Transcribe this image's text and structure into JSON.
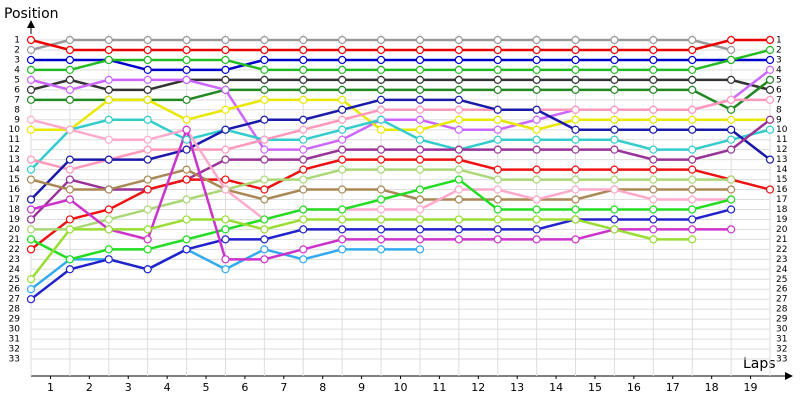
{
  "chart_data": {
    "type": "line",
    "ylabel": "Position",
    "xlabel": "Laps",
    "x": [
      0,
      1,
      2,
      3,
      4,
      5,
      6,
      7,
      8,
      9,
      10,
      11,
      12,
      13,
      14,
      15,
      16,
      17,
      18,
      19
    ],
    "xlim": [
      0,
      19
    ],
    "xticks": [
      {
        "value": 0.5,
        "label": "1"
      },
      {
        "value": 1.5,
        "label": "2"
      },
      {
        "value": 2.5,
        "label": "3"
      },
      {
        "value": 3.5,
        "label": "4"
      },
      {
        "value": 4.5,
        "label": "5"
      },
      {
        "value": 5.5,
        "label": "6"
      },
      {
        "value": 6.5,
        "label": "7"
      },
      {
        "value": 7.5,
        "label": "8"
      },
      {
        "value": 8.5,
        "label": "9"
      },
      {
        "value": 9.5,
        "label": "10"
      },
      {
        "value": 10.5,
        "label": "11"
      },
      {
        "value": 11.5,
        "label": "12"
      },
      {
        "value": 12.5,
        "label": "13"
      },
      {
        "value": 13.5,
        "label": "14"
      },
      {
        "value": 14.5,
        "label": "15"
      },
      {
        "value": 15.5,
        "label": "16"
      },
      {
        "value": 16.5,
        "label": "17"
      },
      {
        "value": 17.5,
        "label": "18"
      },
      {
        "value": 18.5,
        "label": "19"
      }
    ],
    "ylim": [
      1,
      33
    ],
    "y_reversed": true,
    "yticks": [
      1,
      2,
      3,
      4,
      5,
      6,
      7,
      8,
      9,
      10,
      11,
      12,
      13,
      14,
      15,
      16,
      17,
      18,
      19,
      20,
      21,
      22,
      23,
      24,
      25,
      26,
      27,
      28,
      29,
      30,
      31,
      32,
      33
    ],
    "grid": true,
    "series": [
      {
        "color": "#999999",
        "values": [
          2,
          1,
          1,
          1,
          1,
          1,
          1,
          1,
          1,
          1,
          1,
          1,
          1,
          1,
          1,
          1,
          1,
          1,
          2,
          null
        ]
      },
      {
        "color": "#ee0000",
        "values": [
          1,
          2,
          2,
          2,
          2,
          2,
          2,
          2,
          2,
          2,
          2,
          2,
          2,
          2,
          2,
          2,
          2,
          2,
          1,
          1
        ]
      },
      {
        "color": "#0000cc",
        "values": [
          3,
          3,
          3,
          4,
          4,
          4,
          3,
          3,
          3,
          3,
          3,
          3,
          3,
          3,
          3,
          3,
          3,
          3,
          3,
          3
        ]
      },
      {
        "color": "#22bb22",
        "values": [
          4,
          4,
          3,
          3,
          3,
          3,
          4,
          4,
          4,
          4,
          4,
          4,
          4,
          4,
          4,
          4,
          4,
          4,
          3,
          2
        ]
      },
      {
        "color": "#333333",
        "values": [
          6,
          5,
          6,
          6,
          5,
          5,
          5,
          5,
          5,
          5,
          5,
          5,
          5,
          5,
          5,
          5,
          5,
          5,
          5,
          6
        ]
      },
      {
        "color": "#228822",
        "values": [
          7,
          7,
          7,
          7,
          7,
          6,
          6,
          6,
          6,
          6,
          6,
          6,
          6,
          6,
          6,
          6,
          6,
          6,
          8,
          5
        ]
      },
      {
        "color": "#cc66ff",
        "values": [
          5,
          6,
          5,
          5,
          5,
          6,
          12,
          12,
          11,
          9,
          9,
          10,
          10,
          9,
          8,
          8,
          8,
          8,
          7,
          4
        ]
      },
      {
        "color": "#e8e800",
        "values": [
          10,
          10,
          7,
          7,
          9,
          8,
          7,
          7,
          7,
          10,
          10,
          9,
          9,
          10,
          9,
          9,
          9,
          9,
          9,
          9
        ]
      },
      {
        "color": "#33cccc",
        "values": [
          14,
          10,
          9,
          9,
          11,
          10,
          11,
          11,
          10,
          9,
          11,
          12,
          11,
          11,
          11,
          11,
          12,
          12,
          11,
          10
        ]
      },
      {
        "color": "#ff99bb",
        "values": [
          13,
          14,
          13,
          12,
          12,
          12,
          11,
          10,
          9,
          8,
          8,
          8,
          8,
          8,
          8,
          8,
          8,
          8,
          7,
          7
        ]
      },
      {
        "color": "#1a1aaa",
        "values": [
          17,
          13,
          13,
          13,
          12,
          10,
          9,
          9,
          8,
          7,
          7,
          7,
          8,
          8,
          10,
          10,
          10,
          10,
          10,
          13
        ]
      },
      {
        "color": "#993399",
        "values": [
          19,
          15,
          16,
          16,
          15,
          13,
          13,
          13,
          12,
          12,
          12,
          12,
          12,
          12,
          12,
          12,
          13,
          13,
          12,
          9
        ]
      },
      {
        "color": "#ee1111",
        "values": [
          22,
          19,
          18,
          16,
          15,
          15,
          16,
          14,
          13,
          13,
          13,
          13,
          14,
          14,
          14,
          14,
          14,
          14,
          15,
          16
        ]
      },
      {
        "color": "#aa8855",
        "values": [
          15,
          16,
          16,
          15,
          14,
          16,
          17,
          16,
          16,
          16,
          17,
          17,
          17,
          17,
          17,
          16,
          16,
          16,
          16,
          null
        ]
      },
      {
        "color": "#aad877",
        "values": [
          20,
          20,
          19,
          18,
          17,
          16,
          15,
          15,
          14,
          14,
          14,
          14,
          15,
          15,
          15,
          15,
          15,
          15,
          15,
          null
        ]
      },
      {
        "color": "#ffaacc",
        "values": [
          9,
          10,
          11,
          11,
          10,
          16,
          19,
          18,
          18,
          18,
          18,
          16,
          16,
          17,
          16,
          16,
          17,
          17,
          17,
          null
        ]
      },
      {
        "color": "#33aaee",
        "values": [
          26,
          23,
          23,
          24,
          22,
          24,
          22,
          23,
          22,
          22,
          22,
          null,
          null,
          null,
          null,
          null,
          null,
          null,
          null,
          null
        ]
      },
      {
        "color": "#22dd22",
        "values": [
          21,
          23,
          22,
          22,
          21,
          20,
          19,
          18,
          18,
          17,
          16,
          15,
          18,
          18,
          18,
          18,
          18,
          18,
          17,
          null
        ]
      },
      {
        "color": "#2222cc",
        "values": [
          27,
          24,
          23,
          24,
          22,
          21,
          21,
          20,
          20,
          20,
          20,
          20,
          20,
          20,
          19,
          19,
          19,
          19,
          18,
          null
        ]
      },
      {
        "color": "#cc33cc",
        "values": [
          18,
          17,
          20,
          21,
          10,
          23,
          23,
          22,
          21,
          21,
          21,
          21,
          21,
          21,
          21,
          20,
          20,
          20,
          20,
          null
        ]
      },
      {
        "color": "#99dd33",
        "values": [
          25,
          20,
          20,
          20,
          19,
          19,
          20,
          19,
          19,
          19,
          19,
          19,
          19,
          19,
          19,
          20,
          21,
          21,
          null,
          null
        ]
      }
    ]
  }
}
